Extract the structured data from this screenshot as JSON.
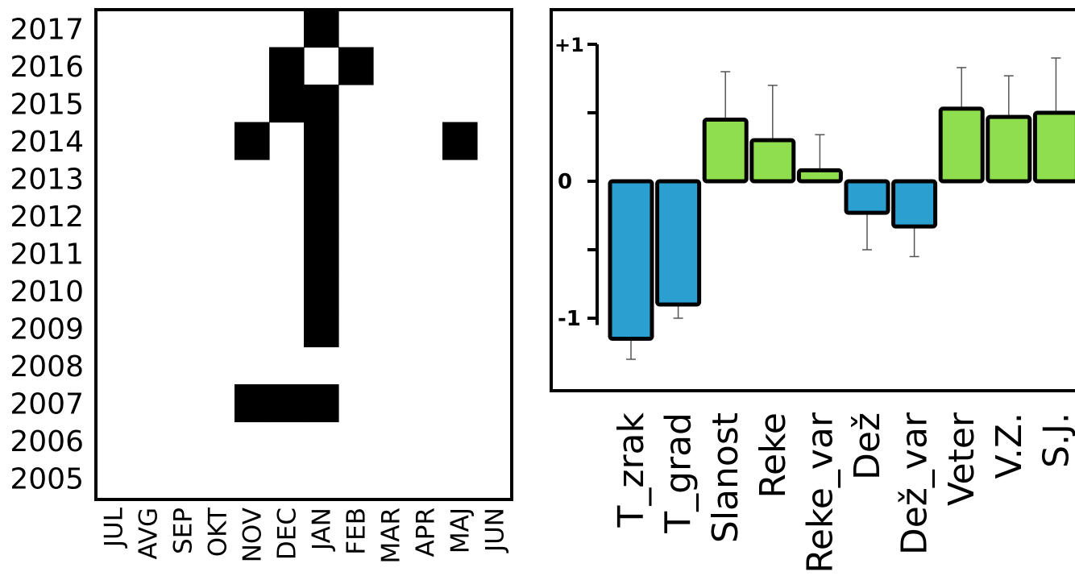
{
  "colors": {
    "positive": "#8ede4e",
    "negative": "#2a9fd0",
    "cell_on": "#000000",
    "cell_off": "#ffffff"
  },
  "chart_data": [
    {
      "type": "heatmap",
      "x_labels": [
        "JUL",
        "AVG",
        "SEP",
        "OKT",
        "NOV",
        "DEC",
        "JAN",
        "FEB",
        "MAR",
        "APR",
        "MAJ",
        "JUN"
      ],
      "y_labels": [
        "2017",
        "2016",
        "2015",
        "2014",
        "2013",
        "2012",
        "2011",
        "2010",
        "2009",
        "2008",
        "2007",
        "2006",
        "2005"
      ],
      "cells": [
        {
          "year": "2017",
          "month": "JAN"
        },
        {
          "year": "2016",
          "month": "DEC"
        },
        {
          "year": "2016",
          "month": "FEB"
        },
        {
          "year": "2015",
          "month": "DEC"
        },
        {
          "year": "2015",
          "month": "JAN"
        },
        {
          "year": "2014",
          "month": "NOV"
        },
        {
          "year": "2014",
          "month": "JAN"
        },
        {
          "year": "2014",
          "month": "MAJ"
        },
        {
          "year": "2013",
          "month": "JAN"
        },
        {
          "year": "2012",
          "month": "JAN"
        },
        {
          "year": "2011",
          "month": "JAN"
        },
        {
          "year": "2010",
          "month": "JAN"
        },
        {
          "year": "2009",
          "month": "JAN"
        },
        {
          "year": "2007",
          "month": "NOV"
        },
        {
          "year": "2007",
          "month": "DEC"
        },
        {
          "year": "2007",
          "month": "JAN"
        }
      ]
    },
    {
      "type": "bar",
      "categories": [
        "T_zrak",
        "T_grad",
        "Slanost",
        "Reke",
        "Reke_var",
        "Dež",
        "Dež_var",
        "Veter",
        "V.Z.",
        "S.J."
      ],
      "values": [
        -1.15,
        -0.9,
        0.45,
        0.3,
        0.08,
        -0.23,
        -0.33,
        0.53,
        0.47,
        0.5
      ],
      "errors": [
        0.15,
        0.1,
        0.35,
        0.4,
        0.26,
        0.27,
        0.22,
        0.3,
        0.3,
        0.4
      ],
      "yticks": [
        {
          "value": 1,
          "label": "+1"
        },
        {
          "value": 0,
          "label": "0"
        },
        {
          "value": -1,
          "label": "-1"
        }
      ],
      "ylim": [
        -1.5,
        1.2
      ]
    }
  ]
}
